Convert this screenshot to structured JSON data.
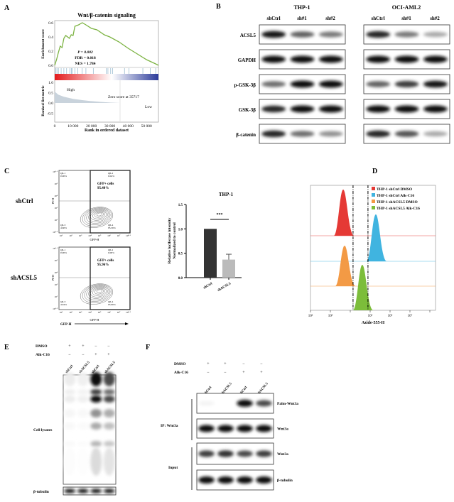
{
  "panels": {
    "a": "A",
    "b": "B",
    "c": "C",
    "d": "D",
    "e": "E",
    "f": "F"
  },
  "colors": {
    "es_curve": "#7cb342",
    "hit": "#7aa6c2",
    "metric_fill": "#c9d3dc",
    "red": "#e53935",
    "blue": "#40b4e0",
    "orange": "#f39a45",
    "green": "#7cbd3a"
  },
  "panel_a": {
    "title": "Wnt/β-catenin signaling",
    "ylabel_top": "Enrichment score",
    "ylabel_bottom": "Ranked list metric",
    "xlabel": "Rank in ordered dataset",
    "stats": {
      "p": "P = 0.002",
      "fdr": "FDR = 0.018",
      "nes": "NES = 1.784"
    },
    "high": "High",
    "low": "Low",
    "zero_score": "Zero score at 35717",
    "es_ticks": [
      "0.0",
      "0.2",
      "0.4",
      "0.6"
    ],
    "metric_ticks": [
      "1.0",
      "0.5",
      "0.0",
      "-0.5"
    ],
    "x_ticks": [
      "0",
      "10 000",
      "20 000",
      "30 000",
      "40 000",
      "50 000"
    ]
  },
  "chart_data": [
    {
      "type": "line",
      "title": "Wnt/β-catenin signaling",
      "xlabel": "Rank in ordered dataset",
      "ylabel": "Enrichment score",
      "xlim": [
        0,
        56500
      ],
      "ylim": [
        0,
        0.62
      ],
      "x": [
        0,
        1000,
        2000,
        3000,
        4000,
        5000,
        6000,
        8000,
        9000,
        10000,
        11000,
        13000,
        15000,
        17000,
        20000,
        23000,
        27000,
        30000,
        35000,
        40000,
        45000,
        50000,
        55000,
        56500
      ],
      "y": [
        0,
        0.08,
        0.18,
        0.27,
        0.25,
        0.38,
        0.42,
        0.38,
        0.43,
        0.42,
        0.55,
        0.57,
        0.6,
        0.57,
        0.52,
        0.5,
        0.43,
        0.4,
        0.33,
        0.24,
        0.16,
        0.08,
        0.02,
        0
      ],
      "hits": [
        500,
        1200,
        2000,
        3500,
        5000,
        6500,
        8200,
        9000,
        9500,
        11000,
        12500,
        15000,
        17000,
        21000,
        28000,
        29000,
        30500,
        31500,
        38000,
        40500,
        48000,
        52000,
        55000
      ],
      "ranked_metric": {
        "ylim": [
          -0.6,
          1.1
        ],
        "x": [
          0,
          2000,
          5000,
          10000,
          15000,
          20000,
          25000,
          30000,
          35717
        ],
        "y": [
          0.55,
          0.4,
          0.3,
          0.2,
          0.14,
          0.09,
          0.05,
          0.02,
          0
        ]
      }
    },
    {
      "type": "bar",
      "title": "THP-1",
      "ylabel": "Relative luciferase intensity\nNormalized to control",
      "categories": [
        "shCtrl",
        "shACSL5"
      ],
      "values": [
        1.0,
        0.37
      ],
      "errors": [
        0,
        0.11
      ],
      "ylim": [
        0,
        1.5
      ],
      "y_ticks": [
        "0.0",
        "0.5",
        "1.0",
        "1.5"
      ],
      "annotation": "***"
    },
    {
      "type": "area",
      "xlabel": "Azide-555-H",
      "x_scale": "log",
      "xlim_log10": [
        2,
        8.2
      ],
      "x_ticks": [
        "10²",
        "10³",
        "10⁵",
        "10⁶",
        "10⁷"
      ],
      "gates_log10": [
        4.14,
        4.89
      ],
      "legend_position": "top-right",
      "series": [
        {
          "name": "THP-1 shCtrl DMSO",
          "peak_log10": 3.68,
          "color": "#e53935"
        },
        {
          "name": "THP-1 shCtrl Alk-C16",
          "peak_log10": 5.32,
          "color": "#40b4e0"
        },
        {
          "name": "THP-1 shACSL5 DMSO",
          "peak_log10": 3.75,
          "color": "#f39a45"
        },
        {
          "name": "THP-1 shACSL5 Alk-C16",
          "peak_log10": 4.64,
          "color": "#7cbd3a"
        }
      ]
    }
  ],
  "panel_b": {
    "groups": [
      {
        "name": "THP-1",
        "lanes": [
          "shCtrl",
          "sh#1",
          "sh#2"
        ]
      },
      {
        "name": "OCI-AML2",
        "lanes": [
          "shCtrl",
          "sh#1",
          "sh#2"
        ]
      }
    ],
    "rows": [
      {
        "label": "ACSL5",
        "thp1": [
          0.95,
          0.65,
          0.55
        ],
        "oci": [
          0.9,
          0.55,
          0.35
        ]
      },
      {
        "label": "GAPDH",
        "thp1": [
          1,
          1,
          1
        ],
        "oci": [
          1,
          1,
          1
        ]
      },
      {
        "label": "p-GSK-3β",
        "thp1": [
          0.6,
          1,
          1
        ],
        "oci": [
          0.65,
          0.8,
          0.95
        ]
      },
      {
        "label": "GSK-3β",
        "thp1": [
          0.9,
          1,
          1
        ],
        "oci": [
          1,
          1,
          1
        ]
      },
      {
        "label": "β-catenin",
        "thp1": [
          0.9,
          0.6,
          0.45
        ],
        "oci": [
          0.9,
          0.7,
          0.35
        ]
      }
    ]
  },
  "panel_c": {
    "samples": [
      {
        "name": "shCtrl",
        "gfp": "GFP+ cells\n95.40%",
        "q1": [
          "Q6-1",
          "0.00%"
        ],
        "q2": [
          "Q6-2",
          "0.04%"
        ],
        "q3": [
          "Q6-3",
          "4.60%"
        ],
        "q4": [
          "Q6-4",
          "95.36%"
        ]
      },
      {
        "name": "shACSL5",
        "gfp": "GFP+ cells\n95.96%",
        "q1": [
          "Q6-1",
          "0.00%"
        ],
        "q2": [
          "Q6-2",
          "0.00%"
        ],
        "q3": [
          "Q6-3",
          "4.04%"
        ],
        "q4": [
          "Q6-4",
          "95.96%"
        ]
      }
    ],
    "y_axis": "PI-H",
    "x_axis": "GFP-H",
    "y_ticks": [
      "10⁶·¹",
      "10⁵",
      "10⁴",
      "10³",
      "10²",
      "10¹·⁵"
    ],
    "x_ticks": [
      "10¹",
      "10²",
      "10³",
      "10⁴",
      "10⁵",
      "10⁶",
      "10⁷",
      "10⁸·¹"
    ],
    "arrow_label": "GFP-H"
  },
  "panel_e": {
    "treatments": [
      {
        "name": "DMSO",
        "signs": [
          "+",
          "+",
          "−",
          "−"
        ]
      },
      {
        "name": "Alk-C16",
        "signs": [
          "−",
          "−",
          "+",
          "+"
        ]
      }
    ],
    "lanes": [
      "shCtrl",
      "shACSL5",
      "shCtrl",
      "shACSL5"
    ],
    "lysate_label": "Cell lysates",
    "lysate_intensity": [
      0.08,
      0.06,
      1,
      0.75
    ],
    "loading_label": "β-tubulin"
  },
  "panel_f": {
    "treatments": [
      {
        "name": "DMSO",
        "signs": [
          "+",
          "+",
          "−",
          "−"
        ]
      },
      {
        "name": "Alk-C16",
        "signs": [
          "−",
          "−",
          "+",
          "+"
        ]
      }
    ],
    "lanes": [
      "shCtrl",
      "shACSL5",
      "shCtrl",
      "shACSL5"
    ],
    "ip_label": "IP: Wnt3a",
    "input_label": "Input",
    "rows": [
      {
        "label": "Palm-Wnt3a",
        "values": [
          0.05,
          0,
          1,
          0.75
        ]
      },
      {
        "label": "Wnt3a",
        "values": [
          1,
          1,
          1,
          1
        ]
      },
      {
        "label": "Wnt3a",
        "values": [
          0.8,
          0.85,
          0.75,
          0.8
        ]
      },
      {
        "label": "β-tubulin",
        "values": [
          1,
          1,
          1,
          1
        ]
      }
    ]
  }
}
